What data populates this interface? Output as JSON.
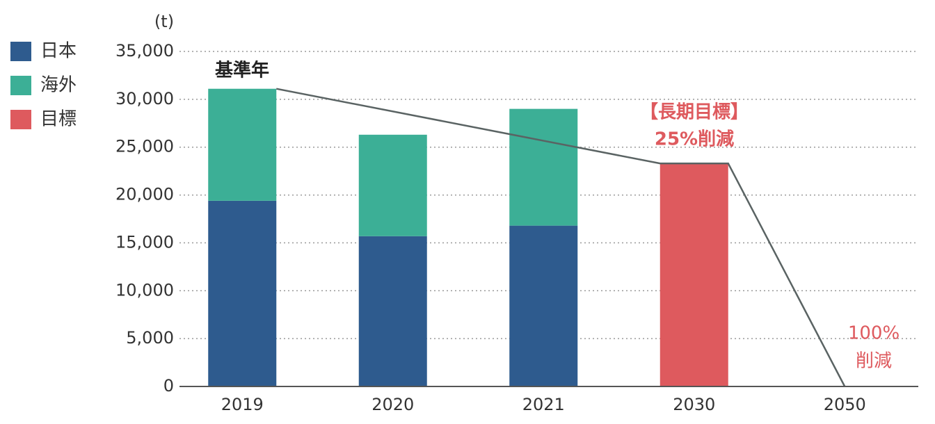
{
  "chart_data": {
    "type": "stacked_bar",
    "y_label": "(t)",
    "categories": [
      "2019",
      "2020",
      "2021",
      "2030",
      "2050"
    ],
    "series": [
      {
        "name": "日本",
        "color": "#2e5b8e",
        "values": [
          19400,
          15700,
          16800,
          null,
          null
        ]
      },
      {
        "name": "海外",
        "color": "#3caf96",
        "values": [
          11700,
          10600,
          12200,
          null,
          null
        ]
      },
      {
        "name": "目標",
        "color": "#de5a5e",
        "values": [
          null,
          null,
          null,
          23300,
          0
        ]
      }
    ],
    "ylim": [
      0,
      35000
    ],
    "yticks": [
      0,
      {
        "value": 5000,
        "label": "5,000"
      },
      {
        "value": 10000,
        "label": "10,000"
      },
      {
        "value": 15000,
        "label": "15,000"
      },
      {
        "value": 20000,
        "label": "20,000"
      },
      {
        "value": 25000,
        "label": "25,000"
      },
      {
        "value": 30000,
        "label": "30,000"
      },
      {
        "value": 35000,
        "label": "35,000"
      }
    ],
    "grid": true,
    "legend": "left",
    "annotations": [
      "基準年",
      "【長期目標】",
      "25%削減",
      "100%",
      "削減"
    ]
  }
}
